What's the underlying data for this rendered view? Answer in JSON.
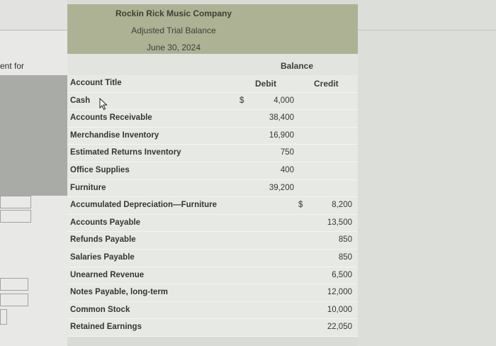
{
  "left_label": "ent for",
  "statement": {
    "company": "Rockin Rick Music Company",
    "title": "Adjusted Trial Balance",
    "date": "June 30, 2024"
  },
  "balance_label": "Balance",
  "columns": {
    "account": "Account Title",
    "debit": "Debit",
    "credit": "Credit"
  },
  "rows": [
    {
      "title": "Cash",
      "debit_symbol": "$",
      "debit": "4,000",
      "credit_symbol": "",
      "credit": ""
    },
    {
      "title": "Accounts Receivable",
      "debit_symbol": "",
      "debit": "38,400",
      "credit_symbol": "",
      "credit": ""
    },
    {
      "title": "Merchandise Inventory",
      "debit_symbol": "",
      "debit": "16,900",
      "credit_symbol": "",
      "credit": ""
    },
    {
      "title": "Estimated Returns Inventory",
      "debit_symbol": "",
      "debit": "750",
      "credit_symbol": "",
      "credit": ""
    },
    {
      "title": "Office Supplies",
      "debit_symbol": "",
      "debit": "400",
      "credit_symbol": "",
      "credit": ""
    },
    {
      "title": "Furniture",
      "debit_symbol": "",
      "debit": "39,200",
      "credit_symbol": "",
      "credit": ""
    },
    {
      "title": "Accumulated Depreciation—Furniture",
      "debit_symbol": "",
      "debit": "",
      "credit_symbol": "$",
      "credit": "8,200"
    },
    {
      "title": "Accounts Payable",
      "debit_symbol": "",
      "debit": "",
      "credit_symbol": "",
      "credit": "13,500"
    },
    {
      "title": "Refunds Payable",
      "debit_symbol": "",
      "debit": "",
      "credit_symbol": "",
      "credit": "850"
    },
    {
      "title": "Salaries Payable",
      "debit_symbol": "",
      "debit": "",
      "credit_symbol": "",
      "credit": "850"
    },
    {
      "title": "Unearned Revenue",
      "debit_symbol": "",
      "debit": "",
      "credit_symbol": "",
      "credit": "6,500"
    },
    {
      "title": "Notes Payable, long-term",
      "debit_symbol": "",
      "debit": "",
      "credit_symbol": "",
      "credit": "12,000"
    },
    {
      "title": "Common Stock",
      "debit_symbol": "",
      "debit": "",
      "credit_symbol": "",
      "credit": "10,000"
    },
    {
      "title": "Retained Earnings",
      "debit_symbol": "",
      "debit": "",
      "credit_symbol": "",
      "credit": "22,050"
    }
  ],
  "icons": {
    "cursor": "mouse-pointer-icon"
  },
  "colors": {
    "header_bg": "#aeb295",
    "row_bg": "#e7e9e5",
    "page_bg": "#d9dbd6"
  }
}
